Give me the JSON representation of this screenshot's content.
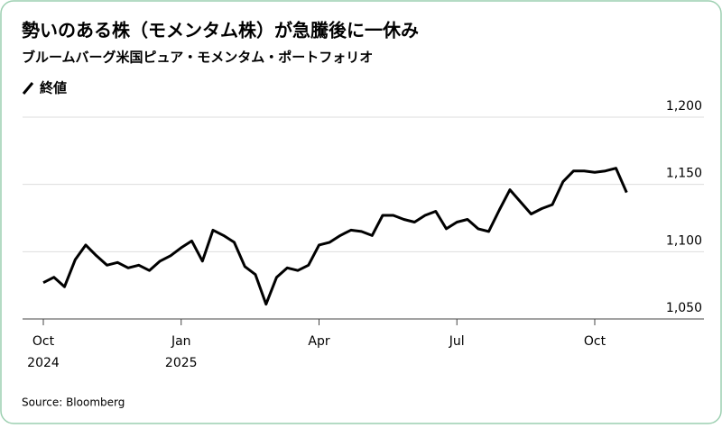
{
  "chart_data": {
    "type": "line",
    "title": "勢いのある株（モメンタム株）が急騰後に一休み",
    "subtitle": "ブルームバーグ米国ピュア・モメンタム・ポートフォリオ",
    "source": "Source: Bloomberg",
    "series": [
      {
        "name": "終値",
        "color": "#000000",
        "values": [
          1077,
          1081,
          1074,
          1094,
          1105,
          1097,
          1090,
          1092,
          1088,
          1090,
          1086,
          1093,
          1097,
          1103,
          1108,
          1093,
          1116,
          1112,
          1107,
          1089,
          1083,
          1061,
          1081,
          1088,
          1086,
          1090,
          1105,
          1107,
          1112,
          1116,
          1115,
          1112,
          1127,
          1127,
          1124,
          1122,
          1127,
          1130,
          1117,
          1122,
          1124,
          1117,
          1115,
          1131,
          1146,
          1137,
          1128,
          1132,
          1135,
          1152,
          1160,
          1160,
          1159,
          1160,
          1162,
          1144
        ]
      }
    ],
    "ylim": [
      1050,
      1200
    ],
    "yticks": [
      {
        "value": 1050,
        "label": "1,050"
      },
      {
        "value": 1100,
        "label": "1,100"
      },
      {
        "value": 1150,
        "label": "1,150"
      },
      {
        "value": 1200,
        "label": "1,200"
      }
    ],
    "xticks": [
      {
        "value": 0,
        "label": "Oct 2024"
      },
      {
        "value": 13,
        "label": "Jan 2025"
      },
      {
        "value": 26,
        "label": "Apr"
      },
      {
        "value": 39,
        "label": "Jul"
      },
      {
        "value": 52,
        "label": "Oct"
      }
    ],
    "grid": true
  }
}
